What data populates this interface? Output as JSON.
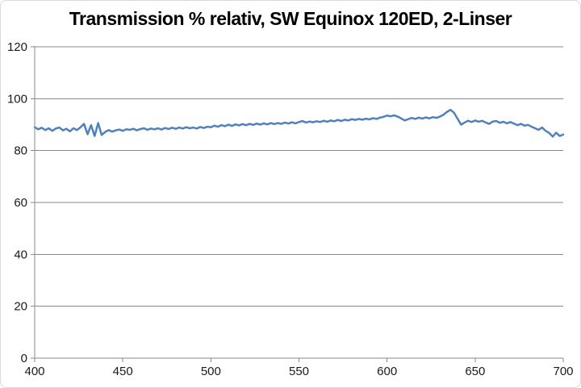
{
  "chart": {
    "title": "Transmission % relativ, SW Equinox 120ED, 2-Linser"
  },
  "chart_data": {
    "type": "line",
    "title": "Transmission % relativ, SW Equinox 120ED, 2-Linser",
    "xlabel": "",
    "ylabel": "",
    "xlim": [
      400,
      700
    ],
    "ylim": [
      0,
      120
    ],
    "x_ticks": [
      400,
      450,
      500,
      550,
      600,
      650,
      700
    ],
    "y_ticks": [
      0,
      20,
      40,
      60,
      80,
      100,
      120
    ],
    "grid": "horizontal",
    "legend": "none",
    "line_color": "#4F81BD",
    "grid_color": "#8a8a8a",
    "axis_color": "#8a8a8a",
    "series_name": "Transmission % relativ",
    "x": [
      400,
      402,
      404,
      406,
      408,
      410,
      412,
      414,
      416,
      418,
      420,
      422,
      424,
      426,
      428,
      430,
      432,
      434,
      436,
      438,
      440,
      442,
      444,
      446,
      448,
      450,
      452,
      454,
      456,
      458,
      460,
      462,
      464,
      466,
      468,
      470,
      472,
      474,
      476,
      478,
      480,
      482,
      484,
      486,
      488,
      490,
      492,
      494,
      496,
      498,
      500,
      502,
      504,
      506,
      508,
      510,
      512,
      514,
      516,
      518,
      520,
      522,
      524,
      526,
      528,
      530,
      532,
      534,
      536,
      538,
      540,
      542,
      544,
      546,
      548,
      550,
      552,
      554,
      556,
      558,
      560,
      562,
      564,
      566,
      568,
      570,
      572,
      574,
      576,
      578,
      580,
      582,
      584,
      586,
      588,
      590,
      592,
      594,
      596,
      598,
      600,
      602,
      604,
      606,
      608,
      610,
      612,
      614,
      616,
      618,
      620,
      622,
      624,
      626,
      628,
      630,
      632,
      634,
      636,
      638,
      640,
      642,
      644,
      646,
      648,
      650,
      652,
      654,
      656,
      658,
      660,
      662,
      664,
      666,
      668,
      670,
      672,
      674,
      676,
      678,
      680,
      682,
      684,
      686,
      688,
      690,
      692,
      694,
      696,
      698,
      700
    ],
    "values": [
      89.0,
      88.2,
      88.8,
      87.9,
      88.6,
      87.6,
      88.5,
      88.9,
      87.8,
      88.4,
      87.4,
      88.6,
      87.9,
      89.0,
      90.3,
      86.3,
      89.8,
      85.6,
      90.6,
      86.0,
      87.2,
      87.9,
      87.3,
      87.8,
      88.1,
      87.6,
      88.2,
      88.0,
      88.4,
      87.8,
      88.3,
      88.6,
      88.0,
      88.5,
      88.2,
      88.6,
      88.1,
      88.7,
      88.3,
      88.8,
      88.4,
      88.9,
      88.5,
      89.0,
      88.6,
      88.9,
      88.5,
      89.1,
      88.7,
      89.2,
      89.0,
      89.6,
      89.2,
      89.8,
      89.4,
      90.0,
      89.5,
      90.1,
      89.7,
      90.2,
      89.8,
      90.3,
      89.9,
      90.4,
      90.0,
      90.5,
      90.1,
      90.6,
      90.2,
      90.6,
      90.3,
      90.8,
      90.4,
      90.9,
      90.5,
      91.0,
      91.4,
      90.8,
      91.2,
      90.9,
      91.3,
      91.0,
      91.5,
      91.1,
      91.6,
      91.3,
      91.8,
      91.4,
      91.9,
      91.6,
      92.1,
      91.8,
      92.2,
      91.9,
      92.3,
      92.0,
      92.5,
      92.2,
      92.7,
      93.0,
      93.5,
      93.2,
      93.6,
      93.1,
      92.4,
      91.6,
      92.1,
      92.6,
      92.2,
      92.7,
      92.3,
      92.8,
      92.4,
      92.9,
      92.6,
      93.1,
      93.8,
      94.9,
      95.7,
      94.6,
      92.3,
      90.0,
      90.8,
      91.5,
      91.0,
      91.6,
      91.1,
      91.5,
      90.8,
      90.3,
      91.2,
      91.4,
      90.7,
      91.1,
      90.5,
      91.0,
      90.4,
      89.8,
      90.3,
      89.6,
      89.9,
      89.2,
      88.6,
      88.0,
      88.9,
      87.6,
      86.8,
      85.4,
      86.9,
      85.6,
      86.2
    ]
  }
}
